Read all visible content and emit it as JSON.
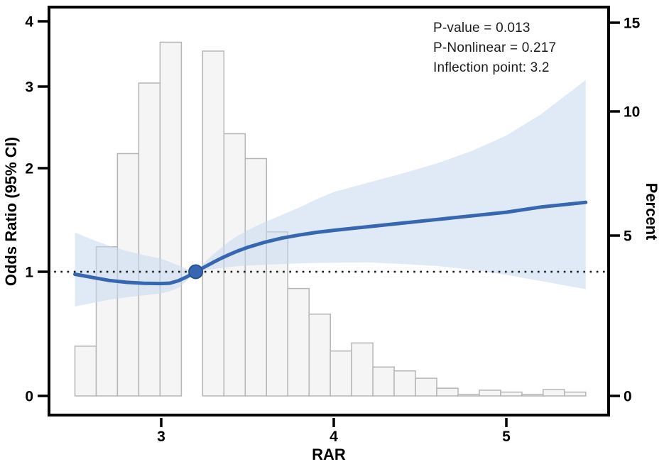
{
  "chart_data": {
    "type": "line",
    "title": "",
    "xlabel": "RAR",
    "ylabel_left": "Odds Ratio (95% CI)",
    "ylabel_right": "Percent",
    "x_ticks": [
      3,
      4,
      5
    ],
    "y_left_ticks": [
      0,
      1,
      2,
      3,
      4
    ],
    "y_right_ticks": [
      0,
      5,
      10,
      15
    ],
    "x_range": [
      2.34,
      5.6
    ],
    "y_left_range": [
      0,
      4.2
    ],
    "y_right_range": [
      0,
      15.8
    ],
    "grid": "off",
    "legend": "none",
    "reference_line_or": 1.0,
    "inflection_point": {
      "x": 3.2,
      "y": 1.0
    },
    "annotations": [
      "P-value = 0.013",
      "P-Nonlinear = 0.217",
      "Inflection point: 3.2"
    ],
    "or_curve": {
      "x": [
        2.5,
        2.6,
        2.7,
        2.8,
        2.9,
        3.0,
        3.05,
        3.1,
        3.15,
        3.2,
        3.25,
        3.3,
        3.35,
        3.4,
        3.45,
        3.5,
        3.6,
        3.7,
        3.8,
        3.9,
        4.0,
        4.2,
        4.4,
        4.6,
        4.8,
        5.0,
        5.2,
        5.46
      ],
      "or": [
        0.98,
        0.955,
        0.93,
        0.915,
        0.907,
        0.905,
        0.908,
        0.928,
        0.96,
        1.0,
        1.045,
        1.09,
        1.132,
        1.17,
        1.205,
        1.235,
        1.285,
        1.325,
        1.355,
        1.38,
        1.4,
        1.435,
        1.47,
        1.505,
        1.54,
        1.575,
        1.625,
        1.67
      ],
      "ci_low": [
        0.72,
        0.748,
        0.775,
        0.795,
        0.81,
        0.825,
        0.843,
        0.87,
        0.928,
        1.0,
        1.012,
        1.025,
        1.037,
        1.047,
        1.055,
        1.06,
        1.068,
        1.075,
        1.08,
        1.085,
        1.088,
        1.09,
        1.075,
        1.055,
        1.02,
        0.975,
        0.925,
        0.86
      ],
      "ci_high": [
        1.38,
        1.31,
        1.25,
        1.2,
        1.16,
        1.125,
        1.095,
        1.06,
        1.028,
        1.0,
        1.09,
        1.165,
        1.235,
        1.3,
        1.355,
        1.4,
        1.48,
        1.55,
        1.62,
        1.7,
        1.77,
        1.86,
        1.95,
        2.06,
        2.21,
        2.4,
        2.66,
        3.1
      ]
    },
    "histogram": {
      "axis": "right_percent",
      "bin_start": 2.5,
      "bin_width": 0.12333,
      "percent": [
        1.55,
        4.65,
        8.3,
        11.6,
        13.9,
        0,
        13.4,
        9.1,
        8.1,
        5.15,
        3.35,
        2.55,
        1.4,
        1.65,
        0.9,
        0.78,
        0.55,
        0.24,
        0.05,
        0.18,
        0.12,
        0.05,
        0.2,
        0.12
      ]
    },
    "colors": {
      "curve": "#3767b0",
      "ci_band": "#c7d8f1",
      "dot_fill": "#3767b0",
      "dot_edge": "#2a5191",
      "bar_fill": "#f5f5f5",
      "bar_edge": "#b5b5b5",
      "frame": "#000000",
      "dotted_line": "#111111"
    }
  }
}
